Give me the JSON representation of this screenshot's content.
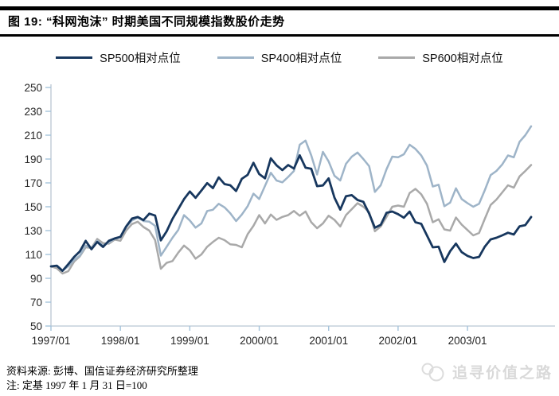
{
  "header": {
    "title": "图 19: “科网泡沫” 时期美国不同规模指数股价走势"
  },
  "legend": {
    "items": [
      {
        "label": "SP500相对点位",
        "color": "#17375e"
      },
      {
        "label": "SP400相对点位",
        "color": "#9eb4c8"
      },
      {
        "label": "SP600相对点位",
        "color": "#a9a9a9"
      }
    ]
  },
  "chart_data": {
    "type": "line",
    "title": "“科网泡沫”时期美国不同规模指数股价走势",
    "xlabel": "",
    "ylabel": "",
    "grid": false,
    "legend_position": "top",
    "x_start": "1997/01",
    "x_freq": "monthly",
    "x_tick_labels": [
      "1997/01",
      "1998/01",
      "1999/01",
      "2000/01",
      "2001/01",
      "2002/01",
      "2003/01"
    ],
    "y_ticks": [
      50,
      70,
      90,
      110,
      130,
      150,
      170,
      190,
      210,
      230,
      250
    ],
    "ylim": [
      50,
      250
    ],
    "base_note": "1997/01/31 = 100",
    "series": [
      {
        "name": "SP500相对点位",
        "color": "#17375e",
        "values": [
          100.0,
          100.6,
          96.3,
          101.9,
          107.9,
          112.6,
          121.4,
          114.4,
          120.5,
          116.3,
          121.5,
          123.4,
          124.7,
          133.5,
          140.1,
          141.4,
          138.8,
          144.2,
          142.6,
          121.8,
          129.4,
          139.8,
          148.0,
          156.4,
          162.8,
          157.5,
          163.6,
          169.8,
          165.6,
          174.6,
          169.0,
          168.0,
          163.2,
          173.4,
          176.7,
          186.9,
          177.4,
          173.8,
          190.6,
          184.7,
          180.7,
          185.0,
          182.0,
          193.1,
          182.7,
          181.8,
          167.3,
          167.9,
          173.8,
          157.7,
          147.6,
          158.9,
          159.7,
          155.7,
          154.1,
          144.2,
          132.4,
          134.8,
          144.9,
          146.0,
          143.8,
          140.8,
          145.9,
          137.0,
          135.7,
          125.9,
          116.0,
          116.5,
          103.7,
          112.7,
          119.1,
          111.9,
          108.8,
          107.0,
          107.9,
          116.6,
          122.6,
          124.0,
          126.0,
          128.2,
          126.7,
          133.6,
          134.6,
          141.4
        ]
      },
      {
        "name": "SP400相对点位",
        "color": "#9eb4c8",
        "values": [
          100.0,
          100.5,
          96.5,
          100.0,
          105.5,
          109.0,
          117.5,
          115.0,
          121.5,
          117.5,
          120.0,
          123.0,
          124.5,
          133.0,
          138.5,
          141.0,
          138.0,
          137.5,
          134.0,
          109.0,
          116.5,
          124.0,
          130.5,
          143.0,
          138.5,
          132.5,
          136.0,
          146.5,
          147.5,
          152.5,
          149.5,
          144.5,
          138.0,
          143.5,
          150.5,
          161.0,
          156.5,
          167.5,
          178.5,
          172.0,
          170.5,
          175.0,
          180.0,
          202.0,
          205.5,
          193.0,
          177.0,
          196.0,
          188.0,
          176.0,
          172.0,
          186.0,
          192.0,
          195.5,
          190.0,
          184.0,
          162.5,
          168.0,
          181.5,
          192.0,
          191.5,
          194.0,
          202.0,
          198.5,
          193.0,
          184.5,
          167.0,
          168.5,
          150.5,
          153.5,
          165.5,
          156.5,
          153.0,
          150.0,
          152.5,
          164.0,
          176.5,
          180.0,
          185.5,
          193.0,
          191.5,
          204.5,
          210.0,
          217.5
        ]
      },
      {
        "name": "SP600相对点位",
        "color": "#a9a9a9",
        "values": [
          100.0,
          98.5,
          94.0,
          96.0,
          104.0,
          108.5,
          116.0,
          115.5,
          123.0,
          119.5,
          119.0,
          122.5,
          121.5,
          130.0,
          135.5,
          137.5,
          133.0,
          130.0,
          122.0,
          98.0,
          103.0,
          104.5,
          111.5,
          117.5,
          113.5,
          106.5,
          110.0,
          116.5,
          120.5,
          124.0,
          122.0,
          118.5,
          118.0,
          116.0,
          127.0,
          134.0,
          143.0,
          136.0,
          143.5,
          139.0,
          141.5,
          143.0,
          146.5,
          142.5,
          146.0,
          137.0,
          132.0,
          136.0,
          142.5,
          139.0,
          133.5,
          143.0,
          148.0,
          153.0,
          150.0,
          145.5,
          129.5,
          133.5,
          141.5,
          150.0,
          151.0,
          150.0,
          161.5,
          165.0,
          160.5,
          152.5,
          137.0,
          139.5,
          131.0,
          130.0,
          141.0,
          135.0,
          130.5,
          126.0,
          128.0,
          140.0,
          151.5,
          156.0,
          162.0,
          168.0,
          166.0,
          175.5,
          180.0,
          185.0
        ]
      }
    ]
  },
  "axis_style": {
    "axis_color": "#b9c6d3",
    "tick_color": "#a5c4dc",
    "label_color": "#262626"
  },
  "footer": {
    "source": "资料来源: 彭博、国信证券经济研究所整理",
    "note": "注: 定基 1997 年 1 月 31 日=100"
  },
  "watermark": {
    "label": "追寻价值之路"
  }
}
